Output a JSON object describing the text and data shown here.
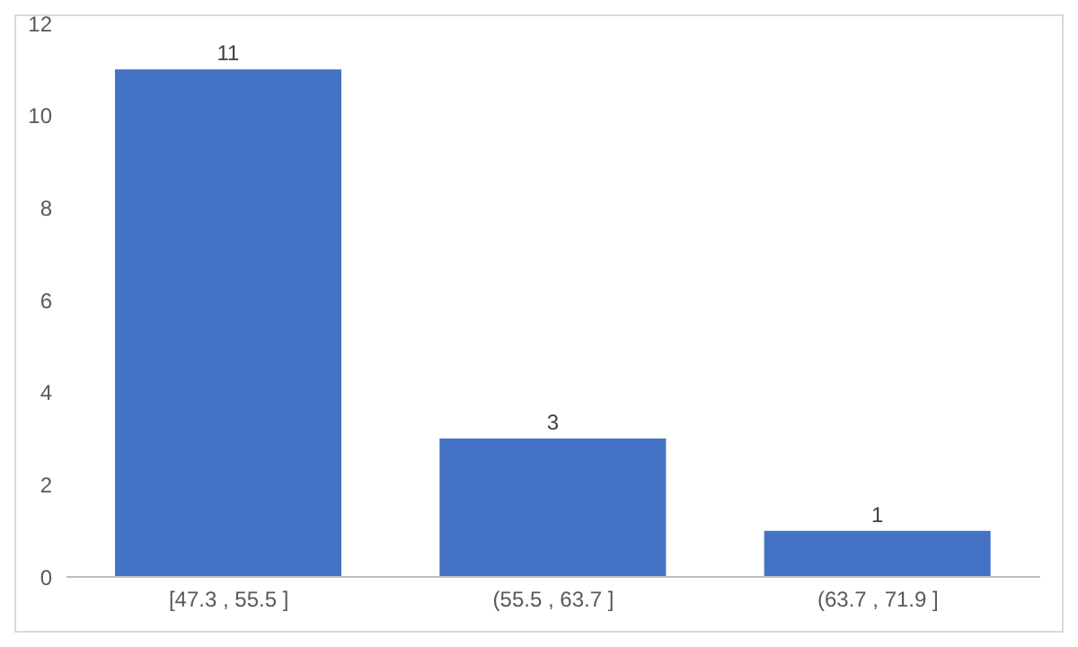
{
  "chart_data": {
    "type": "bar",
    "categories": [
      "[47.3 , 55.5 ]",
      "(55.5 , 63.7 ]",
      "(63.7 , 71.9 ]"
    ],
    "values": [
      11,
      3,
      1
    ],
    "color": "#4472c4",
    "ylim": [
      0,
      12
    ],
    "yticks": [
      0,
      2,
      4,
      6,
      8,
      10,
      12
    ],
    "grid": false,
    "data_labels": true
  }
}
